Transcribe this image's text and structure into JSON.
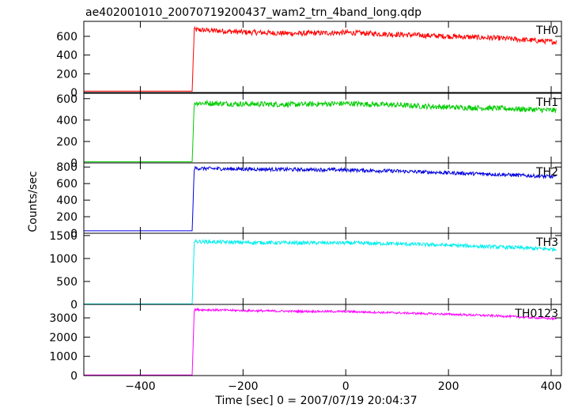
{
  "chart_data": {
    "type": "line",
    "title": "ae402001010_20070719200437_wam2_trn_4band_long.qdp",
    "xlabel": "Time [sec] 0 = 2007/07/19 20:04:37",
    "ylabel": "Counts/sec",
    "xlim": [
      -510,
      420
    ],
    "xticks": [
      -400,
      -200,
      0,
      200,
      400
    ],
    "xticklabels": [
      "−400",
      "−200",
      "0",
      "200",
      "400"
    ],
    "onset_x": -299,
    "series": [
      {
        "name": "TH0",
        "color": "#ff0000",
        "ylim": [
          0,
          760
        ],
        "yticks": [
          0,
          200,
          400,
          600
        ],
        "pre_level": 15,
        "peak_level": 680,
        "end_level": 540,
        "noise": 28,
        "x": [
          -510,
          -300,
          -299,
          -295,
          -250,
          -200,
          -100,
          0,
          100,
          200,
          300,
          410
        ],
        "y": [
          15,
          15,
          15,
          670,
          660,
          645,
          630,
          640,
          620,
          600,
          580,
          540
        ]
      },
      {
        "name": "TH1",
        "color": "#00cc00",
        "ylim": [
          0,
          650
        ],
        "yticks": [
          0,
          200,
          400,
          600
        ],
        "pre_level": 10,
        "peak_level": 570,
        "end_level": 490,
        "noise": 25,
        "x": [
          -510,
          -300,
          -299,
          -295,
          -250,
          -200,
          -100,
          0,
          100,
          200,
          300,
          410
        ],
        "y": [
          10,
          10,
          10,
          560,
          555,
          550,
          545,
          555,
          540,
          520,
          510,
          490
        ]
      },
      {
        "name": "TH2",
        "color": "#0000dd",
        "ylim": [
          0,
          850
        ],
        "yticks": [
          0,
          200,
          400,
          600,
          800
        ],
        "pre_level": 30,
        "peak_level": 790,
        "end_level": 680,
        "noise": 22,
        "x": [
          -510,
          -300,
          -299,
          -295,
          -250,
          -200,
          -100,
          0,
          100,
          200,
          300,
          410
        ],
        "y": [
          30,
          30,
          30,
          785,
          780,
          775,
          770,
          765,
          750,
          730,
          710,
          680
        ]
      },
      {
        "name": "TH3",
        "color": "#00eeee",
        "ylim": [
          0,
          1550
        ],
        "yticks": [
          0,
          500,
          1000,
          1500
        ],
        "yticklabels": [
          "0",
          "500",
          "1000",
          "1500"
        ],
        "pre_level": 10,
        "peak_level": 1380,
        "end_level": 1200,
        "noise": 40,
        "x": [
          -510,
          -300,
          -299,
          -295,
          -250,
          -200,
          -100,
          0,
          100,
          200,
          300,
          410
        ],
        "y": [
          10,
          10,
          10,
          1370,
          1360,
          1350,
          1340,
          1340,
          1320,
          1290,
          1250,
          1200
        ]
      },
      {
        "name": "TH0123",
        "color": "#ff00ff",
        "ylim": [
          0,
          3700
        ],
        "yticks": [
          0,
          1000,
          2000,
          3000
        ],
        "pre_level": 30,
        "peak_level": 3450,
        "end_level": 2950,
        "noise": 55,
        "x": [
          -510,
          -300,
          -299,
          -295,
          -250,
          -200,
          -100,
          0,
          100,
          200,
          300,
          410
        ],
        "y": [
          30,
          30,
          30,
          3430,
          3410,
          3380,
          3340,
          3330,
          3260,
          3190,
          3100,
          2950
        ]
      }
    ]
  }
}
